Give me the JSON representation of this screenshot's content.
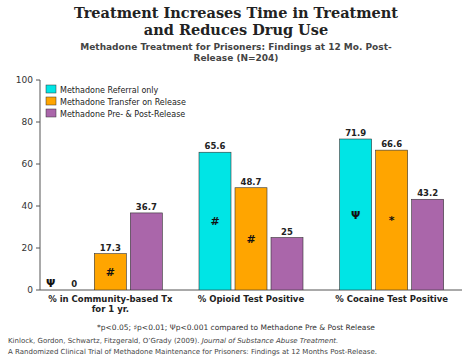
{
  "chart_data": {
    "type": "bar",
    "title": "Treatment Increases Time in Treatment\nand Reduces Drug Use",
    "subtitle": "Methadone Treatment for Prisoners: Findings at 12 Mo. Post-\nRelease (N=204)",
    "categories": [
      "% in Community-based Tx\nfor 1 yr.",
      "% Opioid Test Positive",
      "% Cocaine Test Positive"
    ],
    "series": [
      {
        "name": "Methadone Referral only",
        "color": "#00E5E5",
        "values": [
          0,
          65.6,
          71.9
        ],
        "annotations": [
          "Ψ",
          "#",
          "Ψ"
        ]
      },
      {
        "name": "Methadone Transfer on Release",
        "color": "#FFA500",
        "values": [
          17.3,
          48.7,
          66.6
        ],
        "annotations": [
          "#",
          "#",
          "*"
        ]
      },
      {
        "name": "Methadone Pre- & Post-Release",
        "color": "#AA66AA",
        "values": [
          36.7,
          25,
          43.2
        ]
      }
    ],
    "ylim": [
      0,
      100
    ],
    "yticks": [
      0,
      20,
      40,
      60,
      80,
      100
    ],
    "grid": false,
    "legend": "upper left",
    "data_labels": true,
    "footnote": "*p<0.05;  ♯p<0.01;  Ψp<0.001  compared to Methadone Pre & Post Release",
    "source": [
      "Kinlock, Gordon, Schwartz, Fitzgerald, O’Grady (2009).",
      "Journal of Substance Abuse Treatment.",
      "A Randomized Clinical Trial of Methadone Maintenance for Prisoners: Findings at 12 Months Post-Release."
    ]
  }
}
